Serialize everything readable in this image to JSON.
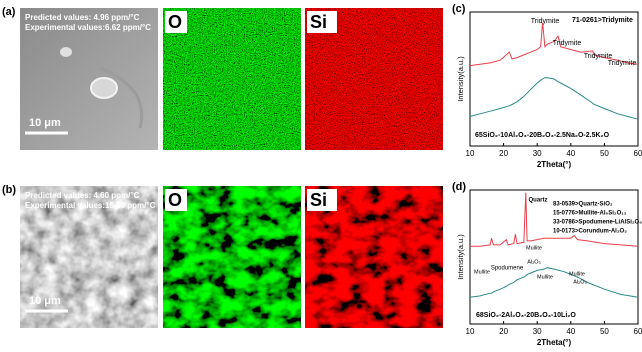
{
  "panels": [
    {
      "label": "(a)",
      "sem": {
        "lines": [
          "Predicted values: 4.96 ppm/°C",
          "Experimental values:6.62 ppm/°C"
        ],
        "scale": "10 μm"
      },
      "maps": [
        "O",
        "Si"
      ]
    },
    {
      "label": "(b)",
      "sem": {
        "lines": [
          "Predicted values: 4.60 ppm/°C",
          "Experimental values:15.10 ppm/°C"
        ],
        "scale": "10 μm"
      },
      "maps": [
        "O",
        "Si"
      ]
    }
  ],
  "chart_data": [
    {
      "type": "line",
      "panel_label": "(c)",
      "x_label": "2Theta(°)",
      "y_label": "Intensity(a.u.)",
      "xlim": [
        10,
        60
      ],
      "xticks": [
        10,
        20,
        30,
        40,
        50,
        60
      ],
      "ylim": [
        0,
        100
      ],
      "x": [
        10,
        13,
        16,
        19,
        21.7,
        22.5,
        24,
        26,
        28,
        30,
        31,
        31.6,
        32.3,
        33,
        35,
        36.2,
        37,
        40,
        43,
        46.5,
        47,
        50,
        54,
        57,
        60
      ],
      "series": [
        {
          "color": "#e8404a",
          "values": [
            60,
            61,
            62,
            64,
            70,
            65,
            66,
            68,
            70,
            72,
            74,
            92,
            74,
            76,
            78,
            82,
            74,
            72,
            70,
            71,
            68,
            66,
            64,
            62,
            61
          ]
        },
        {
          "color": "#2a8a8a",
          "values": [
            22,
            24,
            26,
            28,
            30,
            31,
            33,
            37,
            42,
            47,
            49,
            50,
            51,
            51,
            50,
            48,
            47,
            43,
            38,
            32,
            31,
            28,
            24,
            22,
            20
          ]
        }
      ],
      "annotations": [
        "71-0261>Tridymite",
        "Tridymite",
        "Tridymite",
        "Tridymite",
        "Tridymite",
        "65SiO₂-10Al₂O₃-20B₂O₃-2.5Na₂O-2.5K₂O"
      ]
    },
    {
      "type": "line",
      "panel_label": "(d)",
      "x_label": "2Theta(°)",
      "y_label": "Intensity(a.u.)",
      "xlim": [
        10,
        60
      ],
      "xticks": [
        10,
        20,
        30,
        40,
        50,
        60
      ],
      "ylim": [
        0,
        100
      ],
      "x": [
        10,
        13,
        16,
        16.4,
        17,
        19,
        20.8,
        21.3,
        23,
        23.5,
        24,
        26,
        26.6,
        27,
        28,
        30,
        32,
        33,
        35,
        38,
        40,
        41,
        42,
        45,
        50,
        55,
        60
      ],
      "series": [
        {
          "color": "#e8404a",
          "values": [
            58,
            58,
            59,
            64,
            59,
            59,
            63,
            59,
            60,
            67,
            60,
            61,
            98,
            62,
            62,
            63,
            64,
            64,
            64,
            64,
            64,
            66,
            63,
            62,
            60,
            59,
            58
          ]
        },
        {
          "color": "#2a8a8a",
          "values": [
            20,
            21,
            23,
            23,
            24,
            26,
            28,
            29,
            31,
            32,
            33,
            35,
            36,
            37,
            38,
            40,
            41,
            42,
            41,
            39,
            37,
            36,
            35,
            31,
            26,
            22,
            20
          ]
        }
      ],
      "annotations": [
        "83-0539>Quartz-SiO₂",
        "15-0776>Mullite-Al₆Si₂O₁₃",
        "33-0786>Spodumene-LiAlSi₂O₆",
        "10-0173>Corundum-Al₂O₃",
        "Quartz",
        "Mullite",
        "Al₂O₃",
        "Spodumene",
        "Mullite",
        "Mullite",
        "Mullite",
        "Al₂O₃",
        "68SiO₂-2Al₂O₃-20B₂O₃-10Li₂O"
      ]
    }
  ]
}
